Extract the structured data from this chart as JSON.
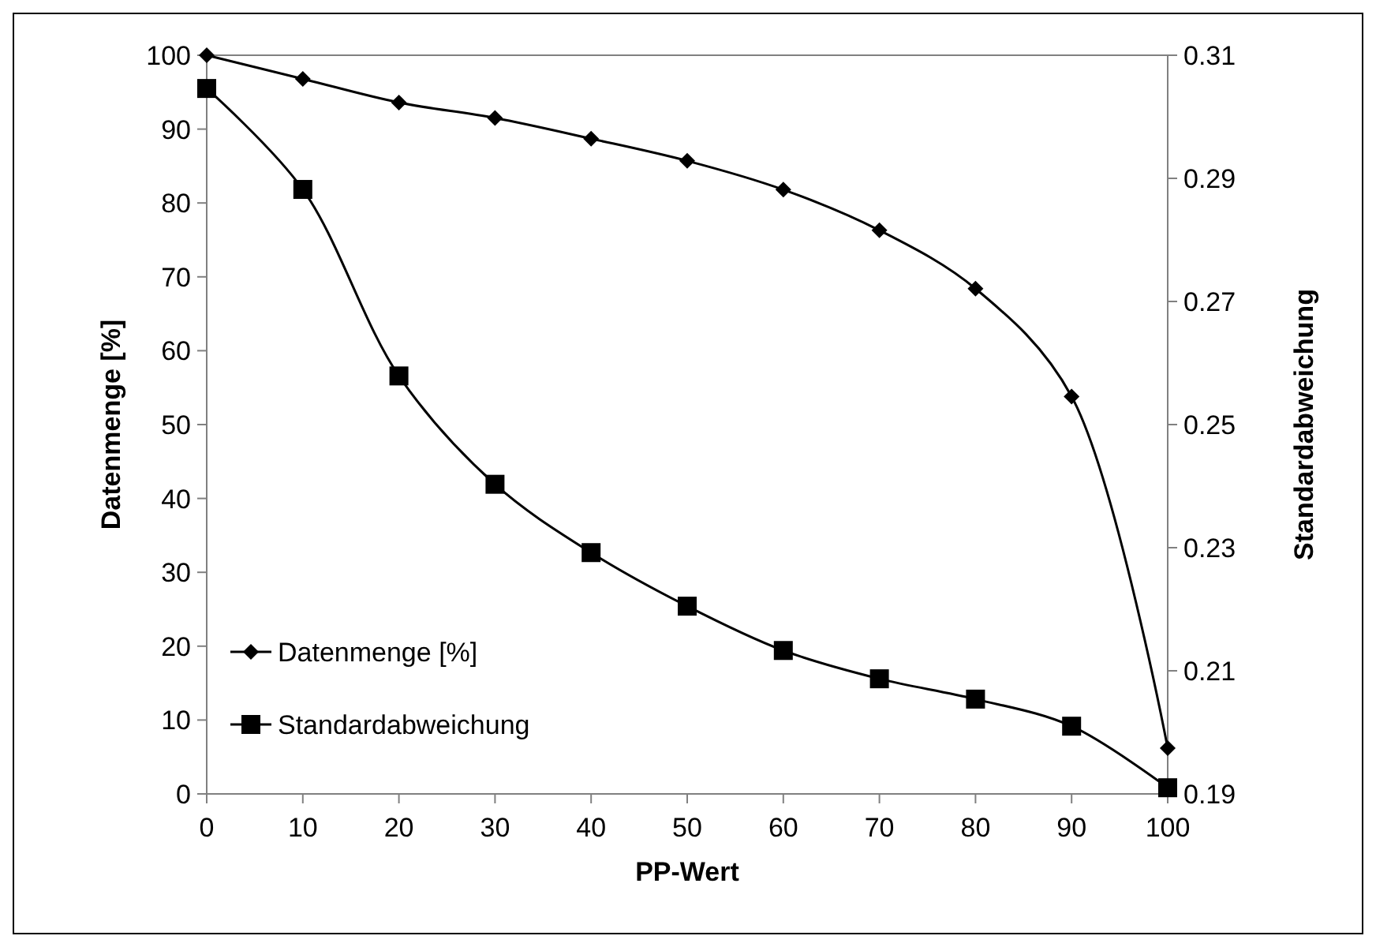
{
  "chart_data": {
    "type": "line",
    "xlabel": "PP-Wert",
    "ylabel": "Datenmenge [%]",
    "y2label": "Standardabweichung",
    "x": [
      0,
      10,
      20,
      30,
      40,
      50,
      60,
      70,
      80,
      90,
      100
    ],
    "series": [
      {
        "name": "Datenmenge [%]",
        "color": "#000000",
        "marker": "diamond",
        "values": [
          100,
          96.8,
          93.6,
          91.5,
          88.7,
          85.7,
          81.8,
          76.3,
          68.4,
          53.8,
          6.2
        ]
      },
      {
        "name": "Standardabweichung",
        "color": "#000000",
        "marker": "square",
        "axis": "y2",
        "values": [
          0.3046,
          0.2882,
          0.2579,
          0.2403,
          0.2292,
          0.2205,
          0.2133,
          0.2087,
          0.2054,
          0.201,
          0.191
        ]
      }
    ],
    "xlim": [
      0,
      100
    ],
    "xticks": [
      0,
      10,
      20,
      30,
      40,
      50,
      60,
      70,
      80,
      90,
      100
    ],
    "ylim": [
      0,
      100
    ],
    "yticks": [
      0,
      10,
      20,
      30,
      40,
      50,
      60,
      70,
      80,
      90,
      100
    ],
    "y2lim": [
      0.19,
      0.31
    ],
    "y2ticks": [
      0.19,
      0.21,
      0.23,
      0.25,
      0.27,
      0.29,
      0.31
    ],
    "grid": false,
    "legend": "bottom left",
    "line_style": "solid"
  }
}
